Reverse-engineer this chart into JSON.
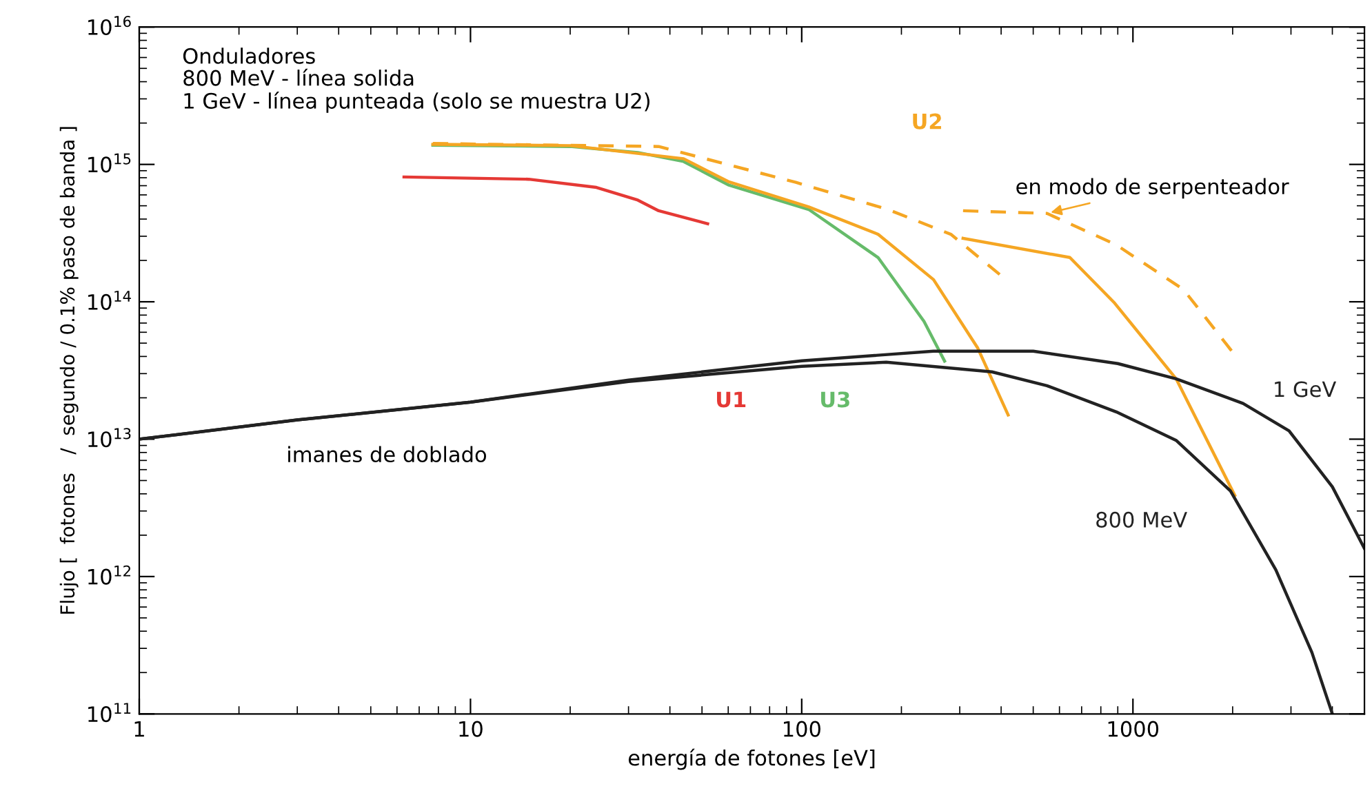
{
  "chart_data": {
    "type": "line",
    "xlabel": "energía de fotones [eV]",
    "ylabel": "Flujo [  fotones   /  segundo / 0.1% paso de banda ]",
    "log": "xy",
    "xlim": [
      1,
      5000
    ],
    "ylim": [
      100000000000.0,
      1e+16
    ],
    "xticks": [
      1,
      10,
      100,
      1000
    ],
    "yticks": [
      {
        "value": 100000000000.0,
        "label": "10$^{11}$"
      },
      {
        "value": 1000000000000.0,
        "label": "10$^{12}$"
      },
      {
        "value": 10000000000000.0,
        "label": "10$^{13}$"
      },
      {
        "value": 100000000000000.0,
        "label": "10$^{14}$"
      },
      {
        "value": 1000000000000000.0,
        "label": "10$^{15}$"
      },
      {
        "value": 1e+16,
        "label": "10$^{16}$"
      }
    ],
    "grid": false,
    "legend": false,
    "marker": "none",
    "series": [
      {
        "name": "U1",
        "color": "#e53935",
        "x": [
          6.3,
          15,
          24,
          32,
          37,
          52
        ],
        "values": [
          810000000000000.0,
          780000000000000.0,
          680000000000000.0,
          550000000000000.0,
          460000000000000.0,
          370000000000000.0
        ]
      },
      {
        "name": "U3",
        "color": "#66bb6a",
        "x": [
          7.7,
          20,
          32,
          44,
          52,
          60,
          105,
          170,
          234,
          270
        ],
        "values": [
          1380000000000000.0,
          1350000000000000.0,
          1220000000000000.0,
          1050000000000000.0,
          850000000000000.0,
          710000000000000.0,
          470000000000000.0,
          210000000000000.0,
          72000000000000.0,
          37000000000000.0
        ]
      },
      {
        "name": "U2",
        "color": "#f5a623",
        "x": [
          7.7,
          20,
          44,
          60,
          105,
          170,
          250,
          340,
          420
        ],
        "values": [
          1400000000000000.0,
          1370000000000000.0,
          1100000000000000.0,
          750000000000000.0,
          490000000000000.0,
          310000000000000.0,
          145000000000000.0,
          46000000000000.0,
          15000000000000.0
        ]
      },
      {
        "color": "#f5a623",
        "line_style": "dashed",
        "x": [
          7.7,
          37,
          96,
          182,
          282,
          400
        ],
        "values": [
          1420000000000000.0,
          1350000000000000.0,
          740000000000000.0,
          470000000000000.0,
          310000000000000.0,
          155000000000000.0
        ]
      },
      {
        "color": "#f5a623",
        "x": [
          307,
          645,
          880,
          1350,
          2030
        ],
        "values": [
          290000000000000.0,
          210000000000000.0,
          98000000000000.0,
          27500000000000.0,
          3900000000000.0
        ]
      },
      {
        "color": "#f5a623",
        "line_style": "dashed",
        "x": [
          307,
          550,
          890,
          1420,
          2030
        ],
        "values": [
          460000000000000.0,
          440000000000000.0,
          260000000000000.0,
          123000000000000.0,
          41000000000000.0
        ]
      },
      {
        "name": "800 MeV",
        "color": "#222222",
        "x": [
          1,
          3,
          10,
          30,
          100,
          180,
          375,
          550,
          890,
          1350,
          1970,
          2700,
          3470,
          4000
        ],
        "values": [
          10000000000000.0,
          13800000000000.0,
          18600000000000.0,
          26300000000000.0,
          33900000000000.0,
          36300000000000.0,
          30900000000000.0,
          24500000000000.0,
          15800000000000.0,
          9800000000000.0,
          4200000000000.0,
          1120000000000.0,
          280000000000.0,
          100000000000.0
        ]
      },
      {
        "name": "1 GeV",
        "color": "#222222",
        "x": [
          1,
          3,
          10,
          30,
          100,
          250,
          500,
          900,
          1350,
          2150,
          2960,
          4000,
          5000
        ],
        "values": [
          10000000000000.0,
          13800000000000.0,
          18600000000000.0,
          26900000000000.0,
          37200000000000.0,
          43700000000000.0,
          43700000000000.0,
          35500000000000.0,
          27500000000000.0,
          18200000000000.0,
          11500000000000.0,
          4500000000000.0,
          1600000000000.0
        ]
      }
    ],
    "annotations": [
      "Onduladores\n800 MeV - línea solida\n1 GeV - línea punteada (solo se muestra U2)",
      "imanes de doblado",
      {
        "text": "en modo de serpenteador",
        "x": 550,
        "y": 440000000000000.0
      }
    ]
  }
}
